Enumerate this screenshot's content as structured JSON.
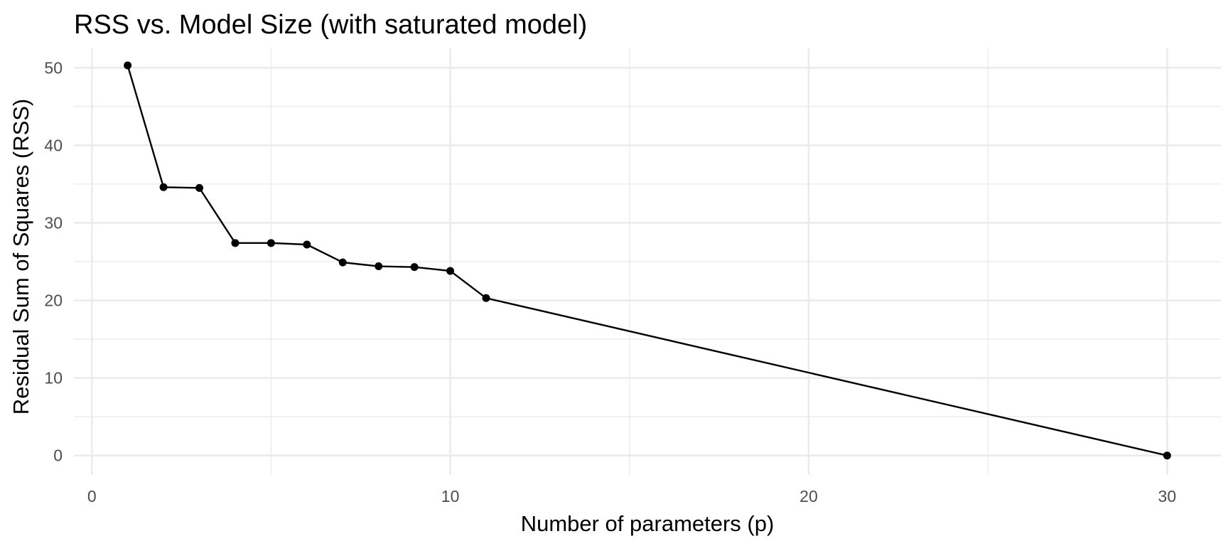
{
  "chart_data": {
    "type": "line",
    "title": "RSS vs. Model Size (with saturated model)",
    "xlabel": "Number of parameters (p)",
    "ylabel": "Residual Sum of Squares (RSS)",
    "xlim": [
      -0.5,
      31.5
    ],
    "ylim": [
      -2.5,
      52.5
    ],
    "x_ticks": [
      0,
      10,
      20,
      30
    ],
    "x_tick_labels": [
      "0",
      "10",
      "20",
      "30"
    ],
    "x_minor_ticks": [
      5,
      15,
      25
    ],
    "y_ticks": [
      0,
      10,
      20,
      30,
      40,
      50
    ],
    "y_tick_labels": [
      "0",
      "10",
      "20",
      "30",
      "40",
      "50"
    ],
    "y_minor_ticks": [
      5,
      15,
      25,
      35,
      45
    ],
    "grid": true,
    "legend": "none",
    "series": [
      {
        "color": "#000000",
        "marker": "circle",
        "x": [
          1,
          2,
          3,
          4,
          5,
          6,
          7,
          8,
          9,
          10,
          11,
          30
        ],
        "y": [
          50.3,
          34.6,
          34.5,
          27.4,
          27.4,
          27.2,
          24.9,
          24.4,
          24.3,
          23.8,
          20.3,
          0.0
        ]
      }
    ]
  }
}
